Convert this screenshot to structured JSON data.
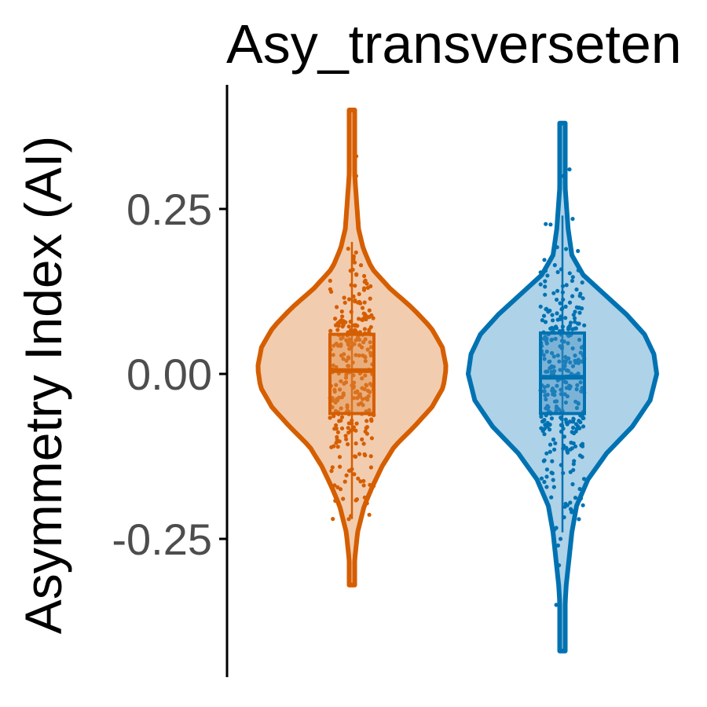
{
  "chart_data": {
    "type": "violin",
    "title": "Asy_transverseten",
    "ylabel": "Asymmetry Index (AI)",
    "xlabel": "",
    "ylim": [
      -0.46,
      0.44
    ],
    "yticks": [
      {
        "value": 0.25,
        "label": "0.25"
      },
      {
        "value": 0.0,
        "label": "0.00"
      },
      {
        "value": -0.25,
        "label": "-0.25"
      }
    ],
    "grid": false,
    "legend": "none",
    "groups": [
      {
        "fill": "#f2ccaf",
        "color": "#d55e00",
        "point_color": "#e08a40",
        "range": [
          -0.32,
          0.4
        ],
        "box": {
          "q1": -0.06,
          "median": 0.005,
          "q3": 0.06,
          "whisker_low": -0.22,
          "whisker_high": 0.2
        },
        "density": [
          [
            -0.32,
            0.01
          ],
          [
            -0.28,
            0.03
          ],
          [
            -0.24,
            0.06
          ],
          [
            -0.2,
            0.13
          ],
          [
            -0.17,
            0.22
          ],
          [
            -0.14,
            0.32
          ],
          [
            -0.11,
            0.45
          ],
          [
            -0.08,
            0.66
          ],
          [
            -0.05,
            0.85
          ],
          [
            -0.02,
            0.97
          ],
          [
            0.01,
            1.0
          ],
          [
            0.04,
            0.96
          ],
          [
            0.07,
            0.84
          ],
          [
            0.1,
            0.64
          ],
          [
            0.13,
            0.4
          ],
          [
            0.16,
            0.21
          ],
          [
            0.19,
            0.12
          ],
          [
            0.22,
            0.07
          ],
          [
            0.26,
            0.05
          ],
          [
            0.3,
            0.03
          ],
          [
            0.34,
            0.02
          ],
          [
            0.4,
            0.01
          ]
        ],
        "outliers": [
          0.33,
          0.3,
          0.27,
          -0.22
        ],
        "n_points": 300
      },
      {
        "fill": "#aed2e8",
        "color": "#0072b2",
        "point_color": "#3d8fc4",
        "range": [
          -0.42,
          0.38
        ],
        "box": {
          "q1": -0.06,
          "median": -0.005,
          "q3": 0.062,
          "whisker_low": -0.24,
          "whisker_high": 0.24
        },
        "density": [
          [
            -0.42,
            0.01
          ],
          [
            -0.37,
            0.02
          ],
          [
            -0.32,
            0.04
          ],
          [
            -0.28,
            0.07
          ],
          [
            -0.24,
            0.1
          ],
          [
            -0.2,
            0.15
          ],
          [
            -0.16,
            0.27
          ],
          [
            -0.12,
            0.47
          ],
          [
            -0.08,
            0.74
          ],
          [
            -0.04,
            0.93
          ],
          [
            0.0,
            1.0
          ],
          [
            0.03,
            0.97
          ],
          [
            0.06,
            0.87
          ],
          [
            0.09,
            0.68
          ],
          [
            0.12,
            0.45
          ],
          [
            0.15,
            0.22
          ],
          [
            0.18,
            0.1
          ],
          [
            0.22,
            0.06
          ],
          [
            0.26,
            0.04
          ],
          [
            0.3,
            0.02
          ],
          [
            0.34,
            0.015
          ],
          [
            0.38,
            0.01
          ]
        ],
        "outliers": [
          0.31,
          0.3,
          -0.35,
          -0.29,
          -0.26,
          -0.25
        ],
        "n_points": 330
      }
    ]
  }
}
